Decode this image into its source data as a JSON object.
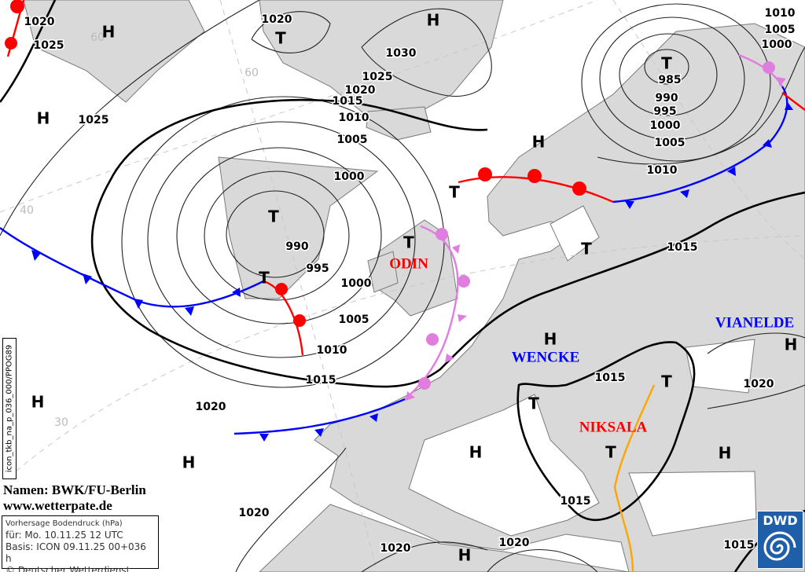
{
  "map": {
    "isobar_labels": [
      "1020",
      "1025",
      "1020",
      "1030",
      "1025",
      "1020",
      "1015",
      "1010",
      "1005",
      "1000",
      "990",
      "995",
      "1000",
      "1005",
      "1010",
      "1015",
      "1020",
      "1020",
      "1020",
      "1020",
      "1015",
      "1015",
      "1015",
      "1010",
      "1005",
      "1000",
      "995",
      "990",
      "985",
      "1010",
      "1005",
      "1000",
      "1020",
      "1015",
      "1025"
    ],
    "pressure_centers": [
      "H",
      "H",
      "T",
      "H",
      "T",
      "H",
      "T",
      "T",
      "T",
      "T",
      "T",
      "H",
      "H",
      "T",
      "T",
      "H",
      "T",
      "H",
      "H",
      "H",
      "H"
    ],
    "grid_labels": [
      "60",
      "60",
      "40",
      "30"
    ],
    "storm_names": [
      {
        "name": "ODIN",
        "color": "#ff0000"
      },
      {
        "name": "WENCKE",
        "color": "#0000ff"
      },
      {
        "name": "VIANELDE",
        "color": "#0000ff"
      },
      {
        "name": "NIKSALA",
        "color": "#ff0000"
      }
    ],
    "front_colors": {
      "cold": "#0000ff",
      "warm": "#ff0000",
      "occluded": "#e07ee0",
      "trough": "#ffa500"
    }
  },
  "credits": {
    "names": "Namen: BWK/FU-Berlin",
    "website": "www.wetterpate.de"
  },
  "info_box": {
    "title": "Vorhersage Bodendruck (hPa)",
    "valid": "für:  Mo. 10.11.25  12 UTC",
    "base": "Basis: ICON  09.11.25 00+036 h",
    "copyright": "© Deutscher Wetterdienst"
  },
  "product_id": "icon_tkb_na_p_036_000/PPOG89",
  "logo": {
    "text": "DWD",
    "color": "#1f5faa"
  }
}
